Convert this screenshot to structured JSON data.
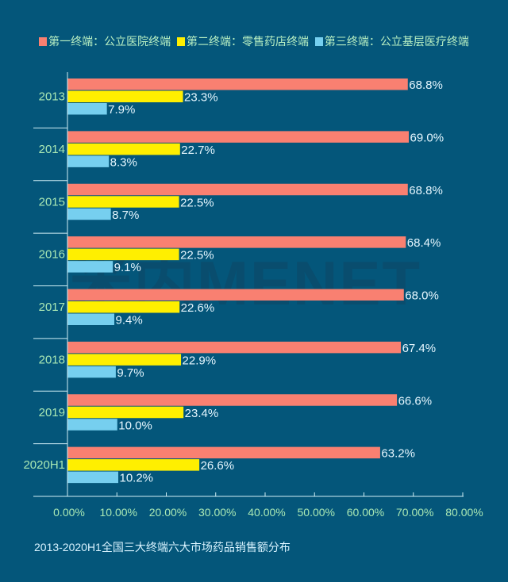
{
  "chart_data": {
    "type": "bar",
    "orientation": "horizontal",
    "title": "2013-2020H1全国三大终端六大市场药品销售额分布",
    "xlabel": "",
    "ylabel": "",
    "categories": [
      "2013",
      "2014",
      "2015",
      "2016",
      "2017",
      "2018",
      "2019",
      "2020H1"
    ],
    "series": [
      {
        "name": "第一终端：公立医院终端",
        "color": "#f98071",
        "values": [
          68.8,
          69.0,
          68.8,
          68.4,
          68.0,
          67.4,
          66.6,
          63.2
        ]
      },
      {
        "name": "第二终端：零售药店终端",
        "color": "#ffef00",
        "values": [
          23.3,
          22.7,
          22.5,
          22.5,
          22.6,
          22.9,
          23.4,
          26.6
        ]
      },
      {
        "name": "第三终端：公立基层医疗终端",
        "color": "#76cfef",
        "values": [
          7.9,
          8.3,
          8.7,
          9.1,
          9.4,
          9.7,
          10.0,
          10.2
        ]
      }
    ],
    "data_labels": [
      [
        "68.8%",
        "69.0%",
        "68.8%",
        "68.4%",
        "68.0%",
        "67.4%",
        "66.6%",
        "63.2%"
      ],
      [
        "23.3%",
        "22.7%",
        "22.5%",
        "22.5%",
        "22.6%",
        "22.9%",
        "23.4%",
        "26.6%"
      ],
      [
        "7.9%",
        "8.3%",
        "8.7%",
        "9.1%",
        "9.4%",
        "9.7%",
        "10.0%",
        "10.2%"
      ]
    ],
    "xlim": [
      0,
      80
    ],
    "xticks": [
      0,
      10,
      20,
      30,
      40,
      50,
      60,
      70,
      80
    ],
    "xtick_labels": [
      "0.00%",
      "10.00%",
      "20.00%",
      "30.00%",
      "40.00%",
      "50.00%",
      "60.00%",
      "70.00%",
      "80.00%"
    ],
    "grid": false,
    "legend_position": "top",
    "category_order": "top-to-bottom"
  },
  "legend": {
    "items": [
      {
        "label": "第一终端：公立医院终端",
        "color": "#f98071"
      },
      {
        "label": "第二终端：零售药店终端",
        "color": "#ffef00"
      },
      {
        "label": "第三终端：公立基层医疗终端",
        "color": "#76cfef"
      }
    ]
  },
  "caption": "2013-2020H1全国三大终端六大市场药品销售额分布",
  "watermark": "米内MENET",
  "colors": {
    "background": "#04567a",
    "axis": "#cfeef5",
    "tick_label": "#a9e8b4",
    "data_label": "#e6f7ff"
  }
}
